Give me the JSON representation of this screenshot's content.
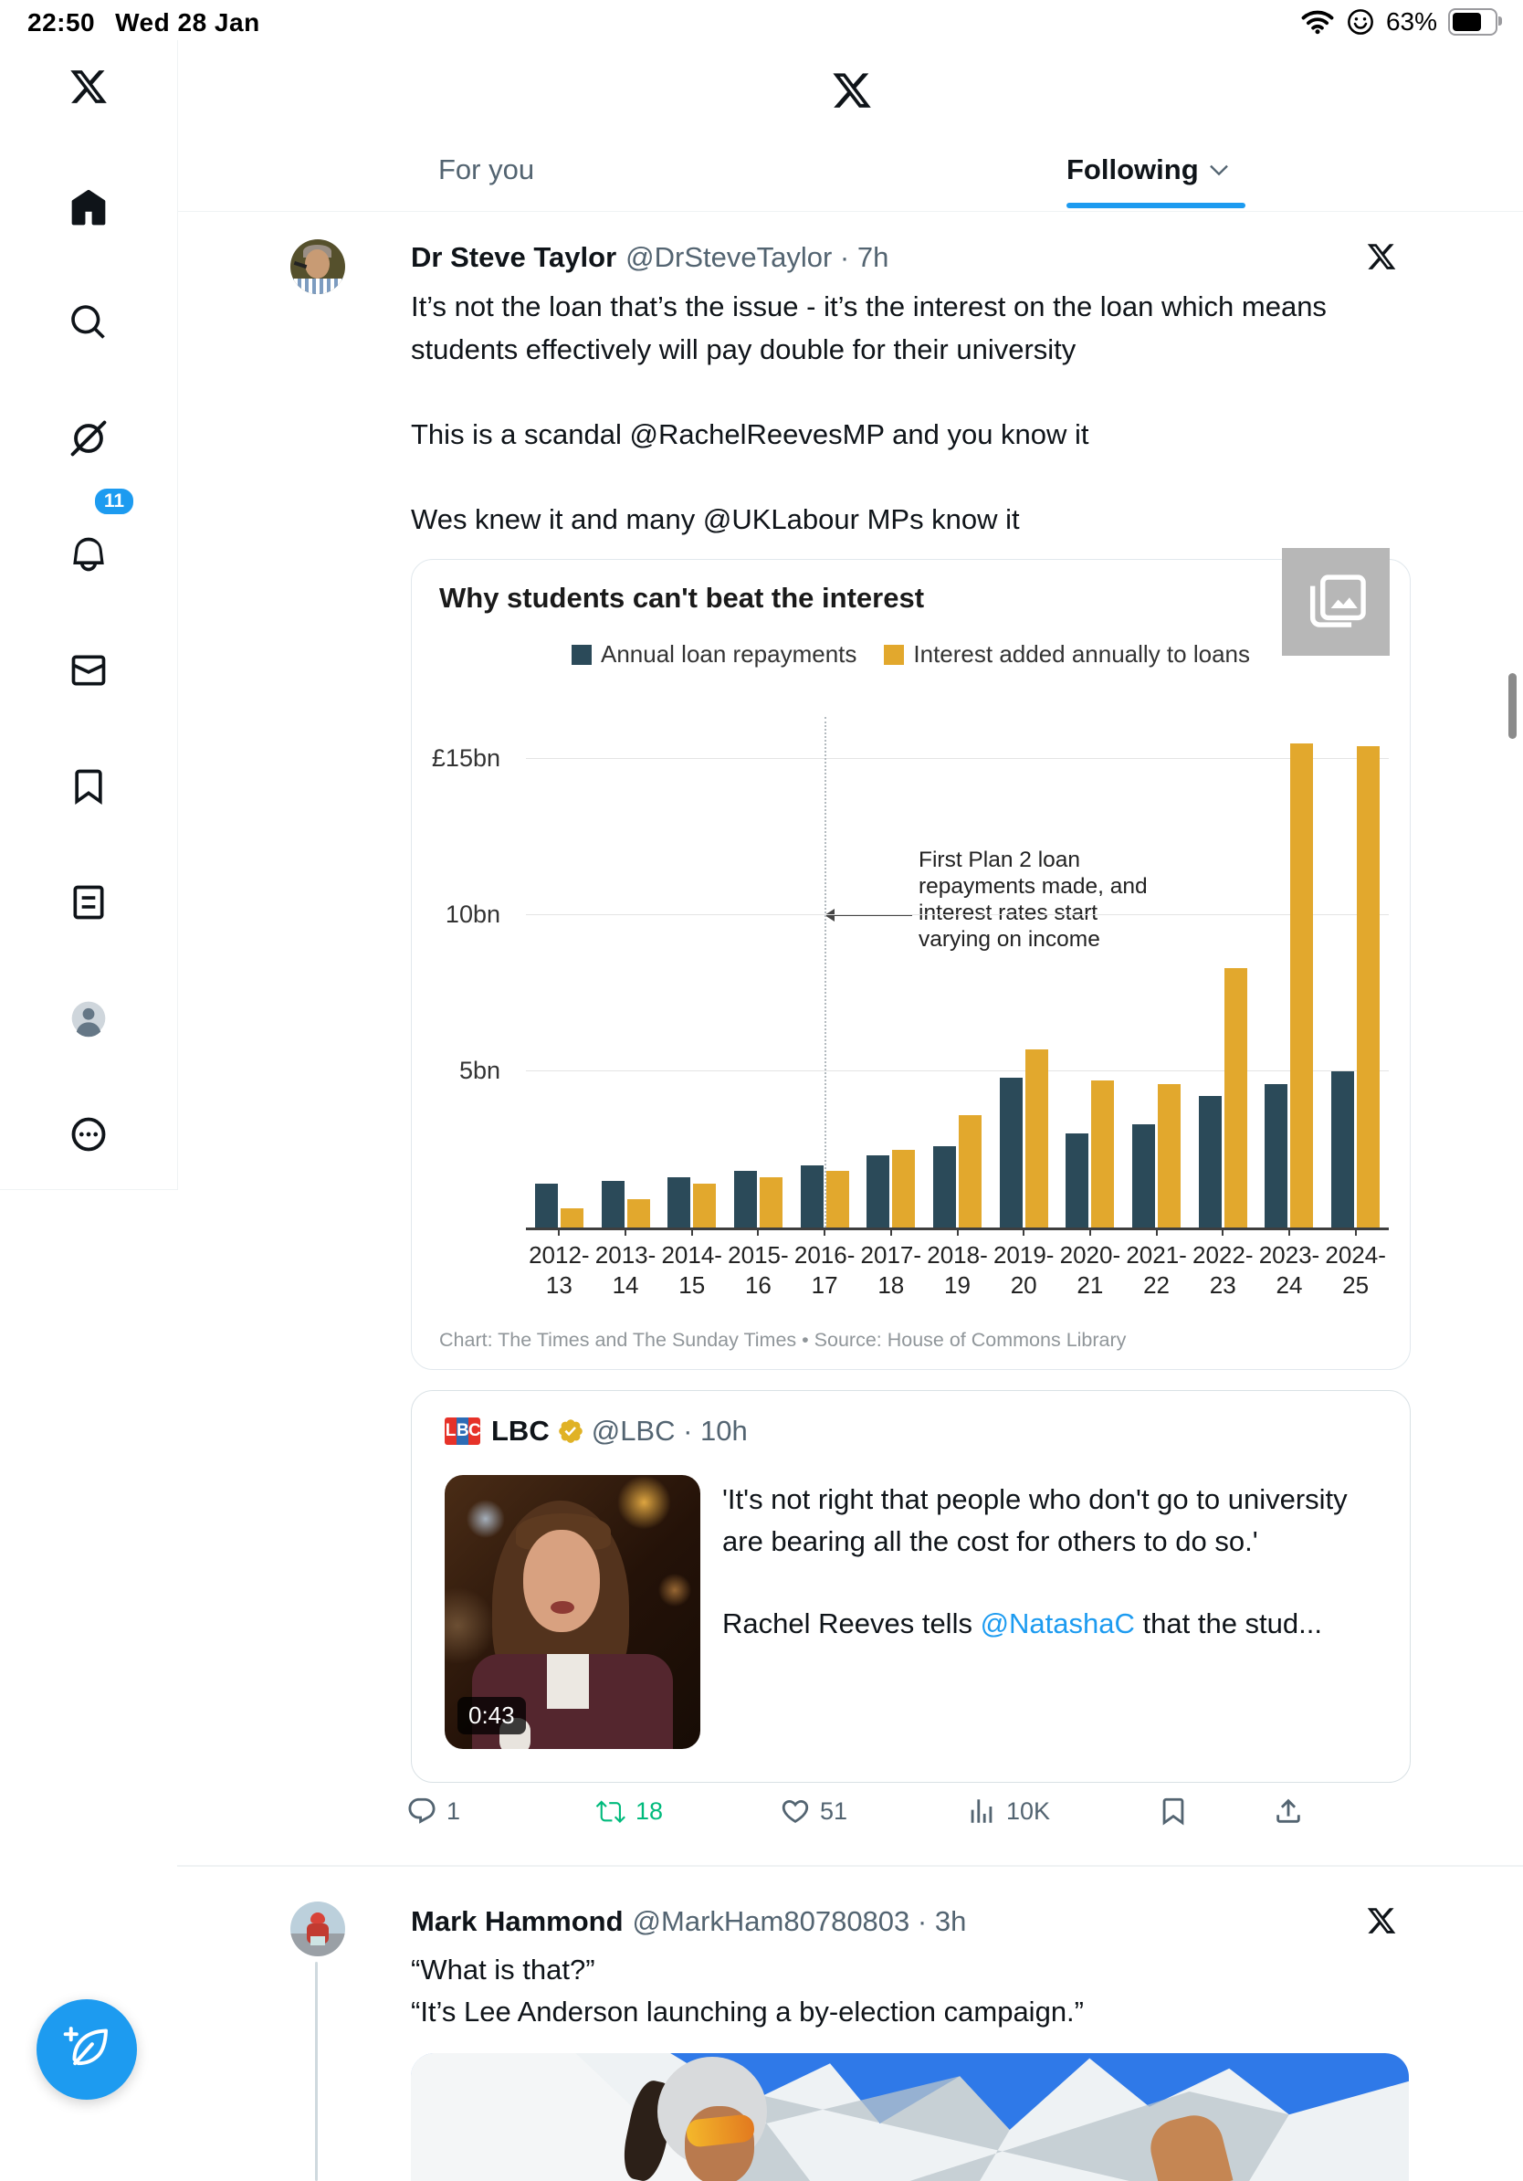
{
  "status_bar": {
    "time": "22:50",
    "date": "Wed 28 Jan",
    "battery_percent": "63%"
  },
  "sidebar": {
    "notifications_badge": "11"
  },
  "header": {
    "tabs": [
      {
        "label": "For you"
      },
      {
        "label": "Following"
      }
    ]
  },
  "tweet1": {
    "author": "Dr Steve Taylor",
    "meta": "@DrSteveTaylor · 7h",
    "para1": "It’s not the loan that’s the issue - it’s the interest on the loan which means students effectively will pay double for their university",
    "para2": "This is a scandal @RachelReevesMP and you know it",
    "para3": "Wes knew it and many @UKLabour MPs know it"
  },
  "chart_data": {
    "type": "bar",
    "title": "Why students can't beat the interest",
    "categories": [
      "2012-13",
      "2013-14",
      "2014-15",
      "2015-16",
      "2016-17",
      "2017-18",
      "2018-19",
      "2019-20",
      "2020-21",
      "2021-22",
      "2022-23",
      "2023-24",
      "2024-25"
    ],
    "series": [
      {
        "name": "Annual loan repayments",
        "color": "#2b4a59",
        "values": [
          1.4,
          1.5,
          1.6,
          1.8,
          2.0,
          2.3,
          2.6,
          4.8,
          3.0,
          3.3,
          4.2,
          4.6,
          5.0
        ]
      },
      {
        "name": "Interest added annually to loans",
        "color": "#e2a82d",
        "values": [
          0.6,
          0.9,
          1.4,
          1.6,
          1.8,
          2.5,
          3.6,
          5.7,
          4.7,
          4.6,
          8.3,
          15.5,
          15.4
        ]
      }
    ],
    "ylabel": "£bn",
    "ylim": [
      0,
      16.5
    ],
    "grid": true,
    "legend_position": "top",
    "yticks": [
      {
        "value": 5,
        "label": "5bn"
      },
      {
        "value": 10,
        "label": "10bn"
      },
      {
        "value": 15,
        "label": "£15bn"
      }
    ],
    "annotation": {
      "lines": [
        "First Plan 2 loan",
        "repayments made, and",
        "interest rates start",
        "varying on income"
      ],
      "category_index": 4
    },
    "credit": "Chart: The Times and The Sunday Times • Source: House of Commons Library"
  },
  "quoted_tweet": {
    "author": "LBC",
    "meta": "@LBC · 10h",
    "logo_letters": {
      "l": "L",
      "b": "B",
      "c": "C"
    },
    "duration": "0:43",
    "quote_para1": "'It's not right that people who don't go to university are bearing all the cost for others to do so.'",
    "quote_pre": "Rachel Reeves tells ",
    "quote_mention": "@NatashaC",
    "quote_post": " that the stud..."
  },
  "actions": {
    "reply": "1",
    "retweet": "18",
    "like": "51",
    "views": "10K"
  },
  "tweet2": {
    "author": "Mark Hammond",
    "meta": "@MarkHam80780803 · 3h",
    "line1": "“What is that?”",
    "line2": "“It’s Lee Anderson launching a by-election campaign.”"
  }
}
